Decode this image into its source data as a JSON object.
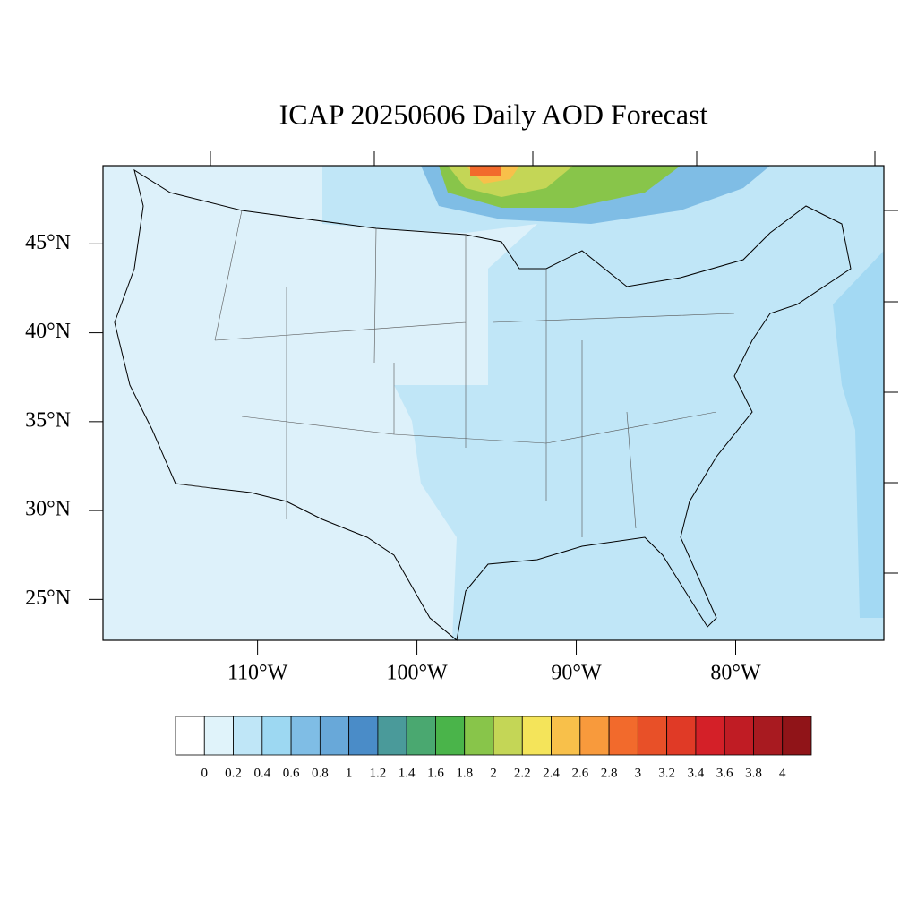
{
  "chart_data": {
    "type": "map",
    "title": "ICAP 20250606 Daily AOD Forecast",
    "xlim": [
      -119.7,
      -70.7
    ],
    "ylim": [
      22.7,
      49.4
    ],
    "xticks": [
      {
        "value": -110,
        "label": "110°W"
      },
      {
        "value": -100,
        "label": "100°W"
      },
      {
        "value": -90,
        "label": "90°W"
      },
      {
        "value": -80,
        "label": "80°W"
      }
    ],
    "yticks": [
      {
        "value": 25,
        "label": "25°N"
      },
      {
        "value": 30,
        "label": "30°N"
      },
      {
        "value": 35,
        "label": "35°N"
      },
      {
        "value": 40,
        "label": "40°N"
      },
      {
        "value": 45,
        "label": "45°N"
      }
    ],
    "colorbar": {
      "levels": [
        0,
        0.2,
        0.4,
        0.6,
        0.8,
        1,
        1.2,
        1.4,
        1.6,
        1.8,
        2,
        2.2,
        2.4,
        2.6,
        2.8,
        3,
        3.2,
        3.4,
        3.6,
        3.8,
        4
      ],
      "colors": [
        "#ffffff",
        "#e0f3fa",
        "#bfe6f7",
        "#9dd8f2",
        "#7fbde5",
        "#68a8d9",
        "#4a8cc8",
        "#4a9a9a",
        "#4aa870",
        "#4ab44a",
        "#88c54a",
        "#c4d656",
        "#f4e45a",
        "#f8c04a",
        "#f89a3c",
        "#f26a2c",
        "#e85028",
        "#e03a26",
        "#d42028",
        "#c01c24",
        "#a81a20",
        "#901418"
      ]
    }
  }
}
